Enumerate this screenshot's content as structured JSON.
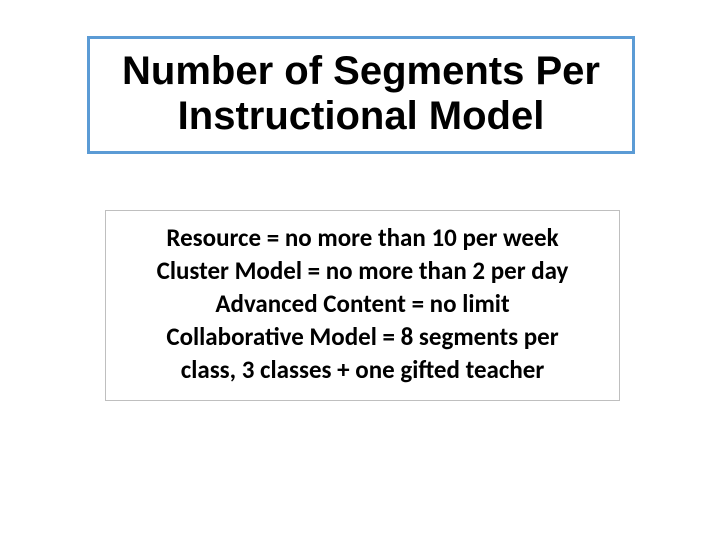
{
  "title": {
    "line1": "Number of Segments Per",
    "line2": "Instructional Model",
    "fontsize": 40,
    "color": "#000000",
    "border_color": "#5b9bd5",
    "border_width": 3
  },
  "content": {
    "lines": [
      "Resource = no more than 10 per week",
      "Cluster Model = no more than 2 per day",
      "Advanced Content = no limit",
      "Collaborative Model = 8 segments per",
      "class, 3 classes + one gifted teacher"
    ],
    "fontsize": 25,
    "color": "#000000",
    "border_color": "#bfbfbf",
    "border_width": 1,
    "font_family": "Calibri, Arial, sans-serif"
  },
  "background_color": "#ffffff"
}
